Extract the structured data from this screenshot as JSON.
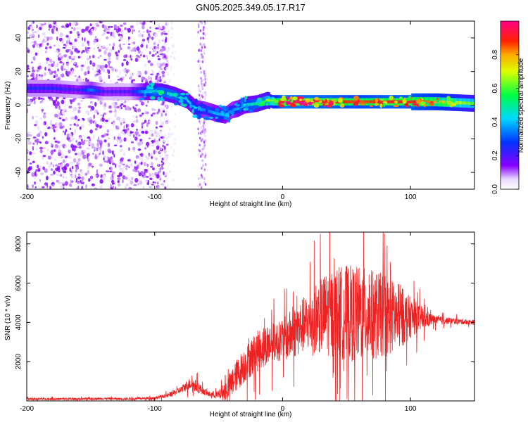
{
  "title": "GN05.2025.349.05.17.R17",
  "chart_data": [
    {
      "type": "heatmap",
      "name": "spectrogram",
      "xlabel": "Height of straight line (km)",
      "ylabel": "Frequency (Hz)",
      "xlim": [
        -200,
        150
      ],
      "ylim": [
        -50,
        50
      ],
      "xticks": [
        -200,
        -100,
        0,
        100
      ],
      "yticks": [
        -40,
        -20,
        0,
        20,
        40
      ],
      "colorbar": {
        "label": "Normalized spectral amplitude",
        "range": [
          0.0,
          1.0
        ],
        "ticks": [
          0.0,
          0.2,
          0.4,
          0.6,
          0.8
        ],
        "tick_labels": [
          "0.0",
          "0.2",
          "0.4",
          "0.6",
          "0.8"
        ]
      },
      "ridge": {
        "description": "dominant frequency vs height",
        "x": [
          -200,
          -180,
          -160,
          -150,
          -140,
          -120,
          -105,
          -95,
          -85,
          -75,
          -68,
          -60,
          -52,
          -45,
          -40,
          -35,
          -30,
          -20,
          -12,
          -8,
          0,
          20,
          40,
          60,
          80,
          100,
          120,
          150
        ],
        "y": [
          10,
          10,
          9,
          9,
          8,
          8,
          8,
          8,
          6,
          3,
          -2,
          -3,
          -5,
          -6,
          -3,
          -2,
          0,
          1,
          3,
          2,
          2,
          2,
          2,
          2,
          2,
          2,
          2,
          1
        ],
        "amplitude": [
          0.25,
          0.25,
          0.2,
          0.35,
          0.2,
          0.2,
          0.45,
          0.5,
          0.5,
          0.45,
          0.4,
          0.35,
          0.4,
          0.4,
          0.35,
          0.4,
          0.45,
          0.5,
          0.6,
          0.7,
          0.95,
          0.95,
          0.9,
          0.85,
          0.9,
          0.9,
          0.8,
          0.6
        ]
      }
    },
    {
      "type": "line",
      "name": "snr",
      "xlabel": "Height of straight line (km)",
      "ylabel": "SNR (10 * v/v)",
      "xlim": [
        -200,
        150
      ],
      "ylim": [
        0,
        8600
      ],
      "xticks": [
        -200,
        -100,
        0,
        100
      ],
      "yticks": [
        2000,
        4000,
        6000,
        8000
      ],
      "color": "#ee2222",
      "series": [
        {
          "name": "SNR",
          "x": [
            -200,
            -180,
            -160,
            -140,
            -120,
            -100,
            -90,
            -80,
            -72,
            -66,
            -62,
            -58,
            -50,
            -45,
            -40,
            -35,
            -30,
            -25,
            -20,
            -15,
            -10,
            -5,
            0,
            5,
            10,
            15,
            20,
            25,
            30,
            35,
            40,
            45,
            50,
            55,
            60,
            65,
            70,
            75,
            80,
            85,
            90,
            95,
            100,
            105,
            110,
            115,
            120,
            130,
            140,
            150
          ],
          "base": [
            100,
            100,
            100,
            120,
            100,
            150,
            280,
            550,
            900,
            700,
            500,
            350,
            300,
            500,
            900,
            1400,
            1800,
            2200,
            2500,
            2800,
            2950,
            3000,
            3100,
            3300,
            3550,
            3800,
            4000,
            4200,
            4350,
            4450,
            4500,
            4500,
            4480,
            4450,
            4420,
            4400,
            4380,
            4360,
            4330,
            4300,
            4280,
            4260,
            4240,
            4220,
            4200,
            4150,
            4120,
            4080,
            4040,
            4000
          ],
          "amp": [
            80,
            80,
            80,
            80,
            80,
            100,
            150,
            250,
            450,
            450,
            250,
            200,
            300,
            700,
            1000,
            1200,
            1300,
            1400,
            1500,
            1500,
            1500,
            1400,
            1500,
            1800,
            1900,
            2000,
            2200,
            2500,
            2800,
            3100,
            3300,
            3400,
            3500,
            3500,
            3500,
            3400,
            3300,
            3200,
            3000,
            2800,
            2500,
            2000,
            1500,
            1100,
            800,
            500,
            300,
            250,
            200,
            180
          ]
        }
      ]
    }
  ]
}
